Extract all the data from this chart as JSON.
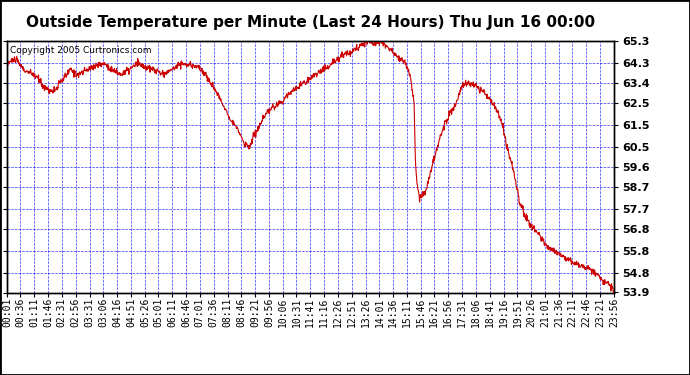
{
  "title": "Outside Temperature per Minute (Last 24 Hours) Thu Jun 16 00:00",
  "copyright": "Copyright 2005 Curtronics.com",
  "background_color": "#ffffff",
  "plot_bg_color": "#ffffff",
  "grid_color": "#0000ff",
  "line_color": "#cc0000",
  "border_color": "#000000",
  "ylim": [
    53.9,
    65.3
  ],
  "yticks": [
    53.9,
    54.8,
    55.8,
    56.8,
    57.7,
    58.7,
    59.6,
    60.5,
    61.5,
    62.5,
    63.4,
    64.3,
    65.3
  ],
  "x_labels": [
    "00:01",
    "00:36",
    "01:11",
    "01:46",
    "02:31",
    "02:56",
    "03:31",
    "03:06",
    "04:16",
    "04:51",
    "05:26",
    "05:01",
    "06:11",
    "06:46",
    "07:01",
    "07:36",
    "08:11",
    "08:46",
    "09:21",
    "09:56",
    "10:06",
    "10:31",
    "11:41",
    "11:16",
    "12:26",
    "12:51",
    "13:26",
    "14:01",
    "14:36",
    "15:11",
    "15:46",
    "16:21",
    "16:56",
    "17:31",
    "18:06",
    "18:41",
    "19:16",
    "19:51",
    "20:26",
    "21:01",
    "21:36",
    "22:11",
    "22:46",
    "23:21",
    "23:56"
  ],
  "title_fontsize": 11,
  "copyright_fontsize": 6.5,
  "tick_fontsize": 7,
  "ytick_fontsize": 8,
  "keypoints": [
    [
      0,
      64.3
    ],
    [
      20,
      64.5
    ],
    [
      40,
      64.0
    ],
    [
      70,
      63.7
    ],
    [
      90,
      63.2
    ],
    [
      110,
      63.0
    ],
    [
      130,
      63.5
    ],
    [
      150,
      64.0
    ],
    [
      170,
      63.8
    ],
    [
      190,
      64.0
    ],
    [
      210,
      64.2
    ],
    [
      230,
      64.3
    ],
    [
      250,
      64.0
    ],
    [
      270,
      63.8
    ],
    [
      290,
      64.0
    ],
    [
      310,
      64.3
    ],
    [
      330,
      64.1
    ],
    [
      350,
      64.0
    ],
    [
      370,
      63.8
    ],
    [
      390,
      64.0
    ],
    [
      410,
      64.3
    ],
    [
      430,
      64.2
    ],
    [
      450,
      64.2
    ],
    [
      470,
      63.8
    ],
    [
      490,
      63.2
    ],
    [
      510,
      62.5
    ],
    [
      530,
      61.8
    ],
    [
      540,
      61.5
    ],
    [
      555,
      61.0
    ],
    [
      565,
      60.6
    ],
    [
      575,
      60.5
    ],
    [
      585,
      61.0
    ],
    [
      600,
      61.5
    ],
    [
      615,
      62.0
    ],
    [
      630,
      62.3
    ],
    [
      650,
      62.5
    ],
    [
      670,
      63.0
    ],
    [
      690,
      63.2
    ],
    [
      710,
      63.5
    ],
    [
      730,
      63.8
    ],
    [
      750,
      64.0
    ],
    [
      770,
      64.3
    ],
    [
      790,
      64.6
    ],
    [
      810,
      64.8
    ],
    [
      830,
      65.0
    ],
    [
      855,
      65.3
    ],
    [
      870,
      65.2
    ],
    [
      885,
      65.3
    ],
    [
      900,
      65.1
    ],
    [
      915,
      64.8
    ],
    [
      930,
      64.5
    ],
    [
      945,
      64.3
    ],
    [
      955,
      63.8
    ],
    [
      965,
      62.5
    ],
    [
      968,
      60.0
    ],
    [
      972,
      58.8
    ],
    [
      978,
      58.2
    ],
    [
      985,
      58.3
    ],
    [
      992,
      58.5
    ],
    [
      1000,
      59.0
    ],
    [
      1010,
      59.8
    ],
    [
      1020,
      60.5
    ],
    [
      1035,
      61.5
    ],
    [
      1050,
      62.0
    ],
    [
      1065,
      62.5
    ],
    [
      1080,
      63.3
    ],
    [
      1095,
      63.4
    ],
    [
      1110,
      63.3
    ],
    [
      1130,
      63.0
    ],
    [
      1150,
      62.5
    ],
    [
      1165,
      62.0
    ],
    [
      1175,
      61.5
    ],
    [
      1185,
      60.5
    ],
    [
      1195,
      59.8
    ],
    [
      1205,
      59.0
    ],
    [
      1215,
      58.0
    ],
    [
      1225,
      57.5
    ],
    [
      1240,
      57.0
    ],
    [
      1260,
      56.5
    ],
    [
      1280,
      56.0
    ],
    [
      1300,
      55.8
    ],
    [
      1320,
      55.5
    ],
    [
      1350,
      55.2
    ],
    [
      1380,
      55.0
    ],
    [
      1410,
      54.5
    ],
    [
      1430,
      54.2
    ],
    [
      1439,
      53.9
    ]
  ]
}
